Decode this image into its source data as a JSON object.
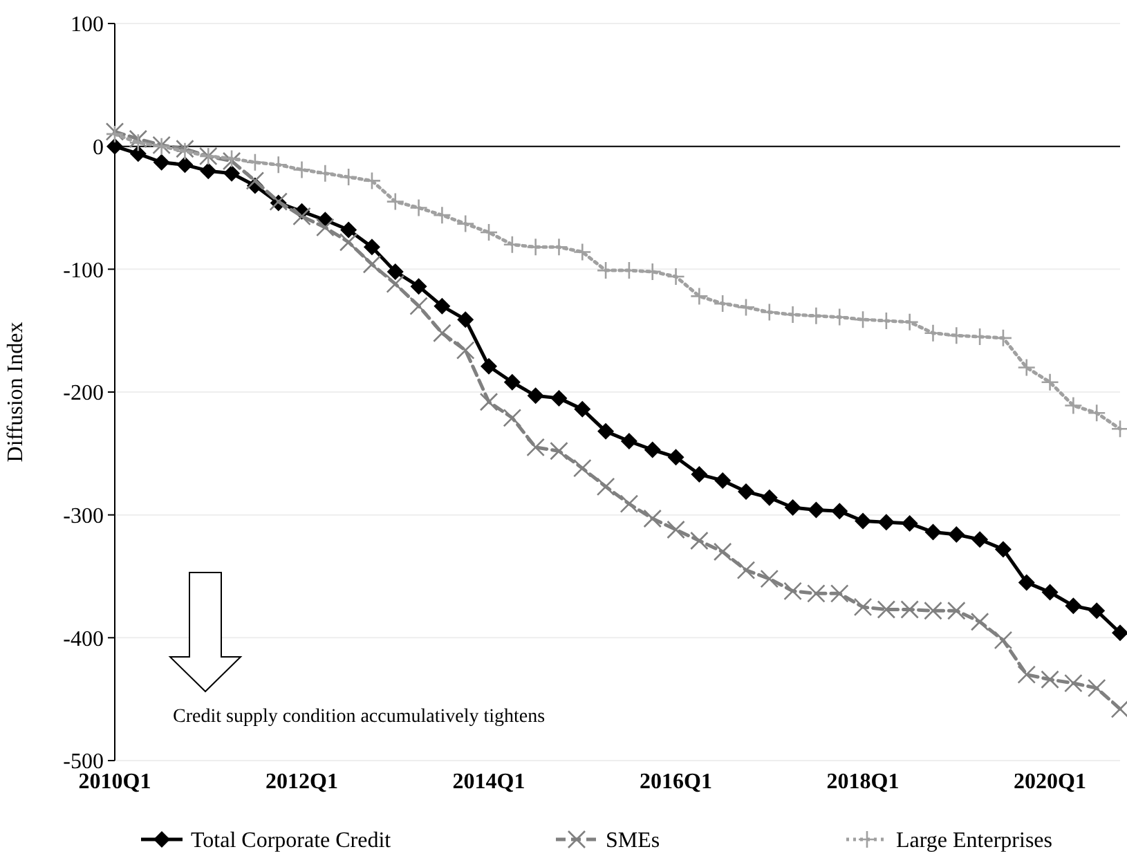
{
  "chart_data": {
    "type": "line",
    "ylabel": "Diffusion Index",
    "ylim": [
      -500,
      100
    ],
    "yticks": [
      -500,
      -400,
      -300,
      -200,
      -100,
      0,
      100
    ],
    "grid": "y",
    "legend": "bottom",
    "categories": [
      "2010Q1",
      null,
      null,
      null,
      null,
      null,
      null,
      null,
      "2012Q1",
      null,
      null,
      null,
      null,
      null,
      null,
      null,
      "2014Q1",
      null,
      null,
      null,
      null,
      null,
      null,
      null,
      "2016Q1",
      null,
      null,
      null,
      null,
      null,
      null,
      null,
      "2018Q1",
      null,
      null,
      null,
      null,
      null,
      null,
      null,
      "2020Q1",
      null,
      null,
      null
    ],
    "series": [
      {
        "name": "Total Corporate Credit",
        "color": "#000000",
        "marker": "diamond",
        "line_style": "solid",
        "values": [
          0,
          -6,
          -13,
          -15,
          -20,
          -22,
          -32,
          -46,
          -53,
          -60,
          -68,
          -82,
          -102,
          -114,
          -130,
          -141,
          -179,
          -192,
          -203,
          -205,
          -214,
          -232,
          -240,
          -247,
          -253,
          -267,
          -272,
          -281,
          -286,
          -294,
          -296,
          -297,
          -305,
          -306,
          -307,
          -314,
          -316,
          -320,
          -328,
          -355,
          -363,
          -374,
          -378,
          -396
        ]
      },
      {
        "name": "SMEs",
        "color": "#808080",
        "marker": "x",
        "line_style": "dashed",
        "values": [
          12,
          6,
          1,
          -2,
          -8,
          -12,
          -28,
          -45,
          -57,
          -66,
          -78,
          -96,
          -112,
          -130,
          -152,
          -166,
          -208,
          -221,
          -245,
          -248,
          -262,
          -277,
          -291,
          -303,
          -312,
          -321,
          -330,
          -345,
          -352,
          -362,
          -364,
          -364,
          -375,
          -377,
          -377,
          -378,
          -378,
          -387,
          -402,
          -430,
          -434,
          -437,
          -441,
          -458
        ]
      },
      {
        "name": "Large Enterprises",
        "color": "#a0a0a0",
        "marker": "cross",
        "line_style": "dotted",
        "values": [
          10,
          3,
          0,
          -4,
          -8,
          -10,
          -13,
          -15,
          -19,
          -22,
          -25,
          -28,
          -45,
          -50,
          -56,
          -63,
          -70,
          -80,
          -82,
          -82,
          -86,
          -101,
          -101,
          -102,
          -106,
          -122,
          -128,
          -131,
          -135,
          -137,
          -138,
          -139,
          -141,
          -142,
          -143,
          -152,
          -154,
          -155,
          -156,
          -180,
          -192,
          -211,
          -217,
          -230
        ]
      }
    ],
    "annotations": [
      "Credit supply condition accumulatively tightens"
    ]
  }
}
